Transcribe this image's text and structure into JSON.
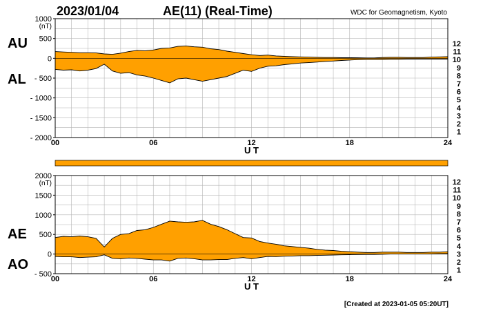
{
  "header": {
    "date": "2023/01/04",
    "title": "AE(11) (Real-Time)",
    "source": "WDC for Geomagnetism, Kyoto"
  },
  "footer": {
    "created": "[Created at 2023-01-05 05:20UT]"
  },
  "colors": {
    "fill": "#ffa000",
    "grid": "#b4b4b4",
    "curve": "#000000"
  },
  "station_legend": [
    {
      "label": "12",
      "color": "#ff0080"
    },
    {
      "label": "11",
      "color": "#e8001c"
    },
    {
      "label": "10",
      "color": "#ffa000"
    },
    {
      "label": "9",
      "color": "#f0e000"
    },
    {
      "label": "8",
      "color": "#90e000"
    },
    {
      "label": "7",
      "color": "#20d0e0"
    },
    {
      "label": "6",
      "color": "#1060ff"
    },
    {
      "label": "5",
      "color": "#2020b0"
    },
    {
      "label": "4",
      "color": "#c010e0"
    },
    {
      "label": "3",
      "color": "#000000"
    },
    {
      "label": "2",
      "color": "#707070"
    },
    {
      "label": "1",
      "color": "#b8b8b8"
    }
  ],
  "chart_data": [
    {
      "type": "area",
      "panel": "top",
      "upper_label": "AU",
      "lower_label": "AL",
      "ylabel": "(nT)",
      "xlabel": "U T",
      "xlim": [
        0,
        24
      ],
      "ylim": [
        -2000,
        1000
      ],
      "y_ticks": [
        "1000",
        "500",
        "0",
        "- 500",
        "- 1000",
        "- 1500",
        "- 2000"
      ],
      "y_tick_values": [
        1000,
        500,
        0,
        -500,
        -1000,
        -1500,
        -2000
      ],
      "x_ticks": [
        "00",
        "06",
        "12",
        "18",
        "24"
      ],
      "x_tick_values": [
        0,
        6,
        12,
        18,
        24
      ],
      "grid": true,
      "series": [
        {
          "name": "AU",
          "x": [
            0,
            0.5,
            1,
            1.5,
            2,
            2.5,
            3,
            3.5,
            4,
            4.5,
            5,
            5.5,
            6,
            6.5,
            7,
            7.5,
            8,
            8.5,
            9,
            9.5,
            10,
            10.5,
            11,
            11.5,
            12,
            12.5,
            13,
            13.5,
            14,
            14.5,
            15,
            15.5,
            16,
            16.5,
            17,
            17.5,
            18,
            18.5,
            19,
            19.5,
            20,
            20.5,
            21,
            21.5,
            22,
            22.5,
            23,
            23.5,
            24
          ],
          "values": [
            170,
            160,
            150,
            140,
            140,
            135,
            110,
            100,
            130,
            170,
            200,
            190,
            210,
            250,
            260,
            300,
            310,
            290,
            280,
            240,
            220,
            180,
            150,
            120,
            90,
            70,
            80,
            60,
            50,
            40,
            35,
            30,
            25,
            20,
            20,
            15,
            15,
            12,
            10,
            10,
            20,
            25,
            25,
            20,
            20,
            20,
            30,
            35,
            40
          ]
        },
        {
          "name": "AL",
          "x": [
            0,
            0.5,
            1,
            1.5,
            2,
            2.5,
            3,
            3.5,
            4,
            4.5,
            5,
            5.5,
            6,
            6.5,
            7,
            7.5,
            8,
            8.5,
            9,
            9.5,
            10,
            10.5,
            11,
            11.5,
            12,
            12.5,
            13,
            13.5,
            14,
            14.5,
            15,
            15.5,
            16,
            16.5,
            17,
            17.5,
            18,
            18.5,
            19,
            19.5,
            20,
            20.5,
            21,
            21.5,
            22,
            22.5,
            23,
            23.5,
            24
          ],
          "values": [
            -280,
            -300,
            -290,
            -320,
            -300,
            -260,
            -150,
            -320,
            -380,
            -360,
            -420,
            -450,
            -500,
            -560,
            -620,
            -520,
            -500,
            -540,
            -580,
            -540,
            -500,
            -460,
            -380,
            -300,
            -330,
            -250,
            -200,
            -190,
            -160,
            -140,
            -120,
            -110,
            -95,
            -80,
            -70,
            -55,
            -45,
            -35,
            -30,
            -30,
            -30,
            -25,
            -25,
            -20,
            -20,
            -20,
            -20,
            -20,
            -20
          ]
        }
      ]
    },
    {
      "type": "area",
      "panel": "bottom",
      "upper_label": "AE",
      "lower_label": "AO",
      "ylabel": "(nT)",
      "xlabel": "U T",
      "xlim": [
        0,
        24
      ],
      "ylim": [
        -500,
        2000
      ],
      "y_ticks": [
        "2000",
        "1500",
        "1000",
        "500",
        "0",
        "- 500"
      ],
      "y_tick_values": [
        2000,
        1500,
        1000,
        500,
        0,
        -500
      ],
      "x_ticks": [
        "00",
        "06",
        "12",
        "18",
        "24"
      ],
      "x_tick_values": [
        0,
        6,
        12,
        18,
        24
      ],
      "grid": true,
      "series": [
        {
          "name": "AE",
          "x": [
            0,
            0.5,
            1,
            1.5,
            2,
            2.5,
            3,
            3.5,
            4,
            4.5,
            5,
            5.5,
            6,
            6.5,
            7,
            7.5,
            8,
            8.5,
            9,
            9.5,
            10,
            10.5,
            11,
            11.5,
            12,
            12.5,
            13,
            13.5,
            14,
            14.5,
            15,
            15.5,
            16,
            16.5,
            17,
            17.5,
            18,
            18.5,
            19,
            19.5,
            20,
            20.5,
            21,
            21.5,
            22,
            22.5,
            23,
            23.5,
            24
          ],
          "values": [
            420,
            450,
            440,
            460,
            440,
            400,
            180,
            400,
            500,
            520,
            600,
            620,
            680,
            760,
            840,
            820,
            810,
            820,
            860,
            760,
            700,
            620,
            520,
            420,
            410,
            320,
            280,
            250,
            210,
            190,
            170,
            150,
            120,
            100,
            90,
            70,
            60,
            50,
            40,
            40,
            50,
            50,
            50,
            40,
            40,
            40,
            50,
            50,
            60
          ]
        },
        {
          "name": "AO",
          "x": [
            0,
            0.5,
            1,
            1.5,
            2,
            2.5,
            3,
            3.5,
            4,
            4.5,
            5,
            5.5,
            6,
            6.5,
            7,
            7.5,
            8,
            8.5,
            9,
            9.5,
            10,
            10.5,
            11,
            11.5,
            12,
            12.5,
            13,
            13.5,
            14,
            14.5,
            15,
            15.5,
            16,
            16.5,
            17,
            17.5,
            18,
            18.5,
            19,
            19.5,
            20,
            20.5,
            21,
            21.5,
            22,
            22.5,
            23,
            23.5,
            24
          ],
          "values": [
            -60,
            -70,
            -70,
            -90,
            -80,
            -70,
            -20,
            -110,
            -120,
            -100,
            -110,
            -130,
            -150,
            -150,
            -180,
            -110,
            -100,
            -120,
            -150,
            -150,
            -140,
            -140,
            -110,
            -90,
            -120,
            -90,
            -60,
            -65,
            -55,
            -50,
            -40,
            -40,
            -35,
            -30,
            -25,
            -20,
            -15,
            -12,
            -10,
            -10,
            -5,
            0,
            0,
            0,
            0,
            0,
            5,
            8,
            10
          ]
        }
      ]
    }
  ]
}
